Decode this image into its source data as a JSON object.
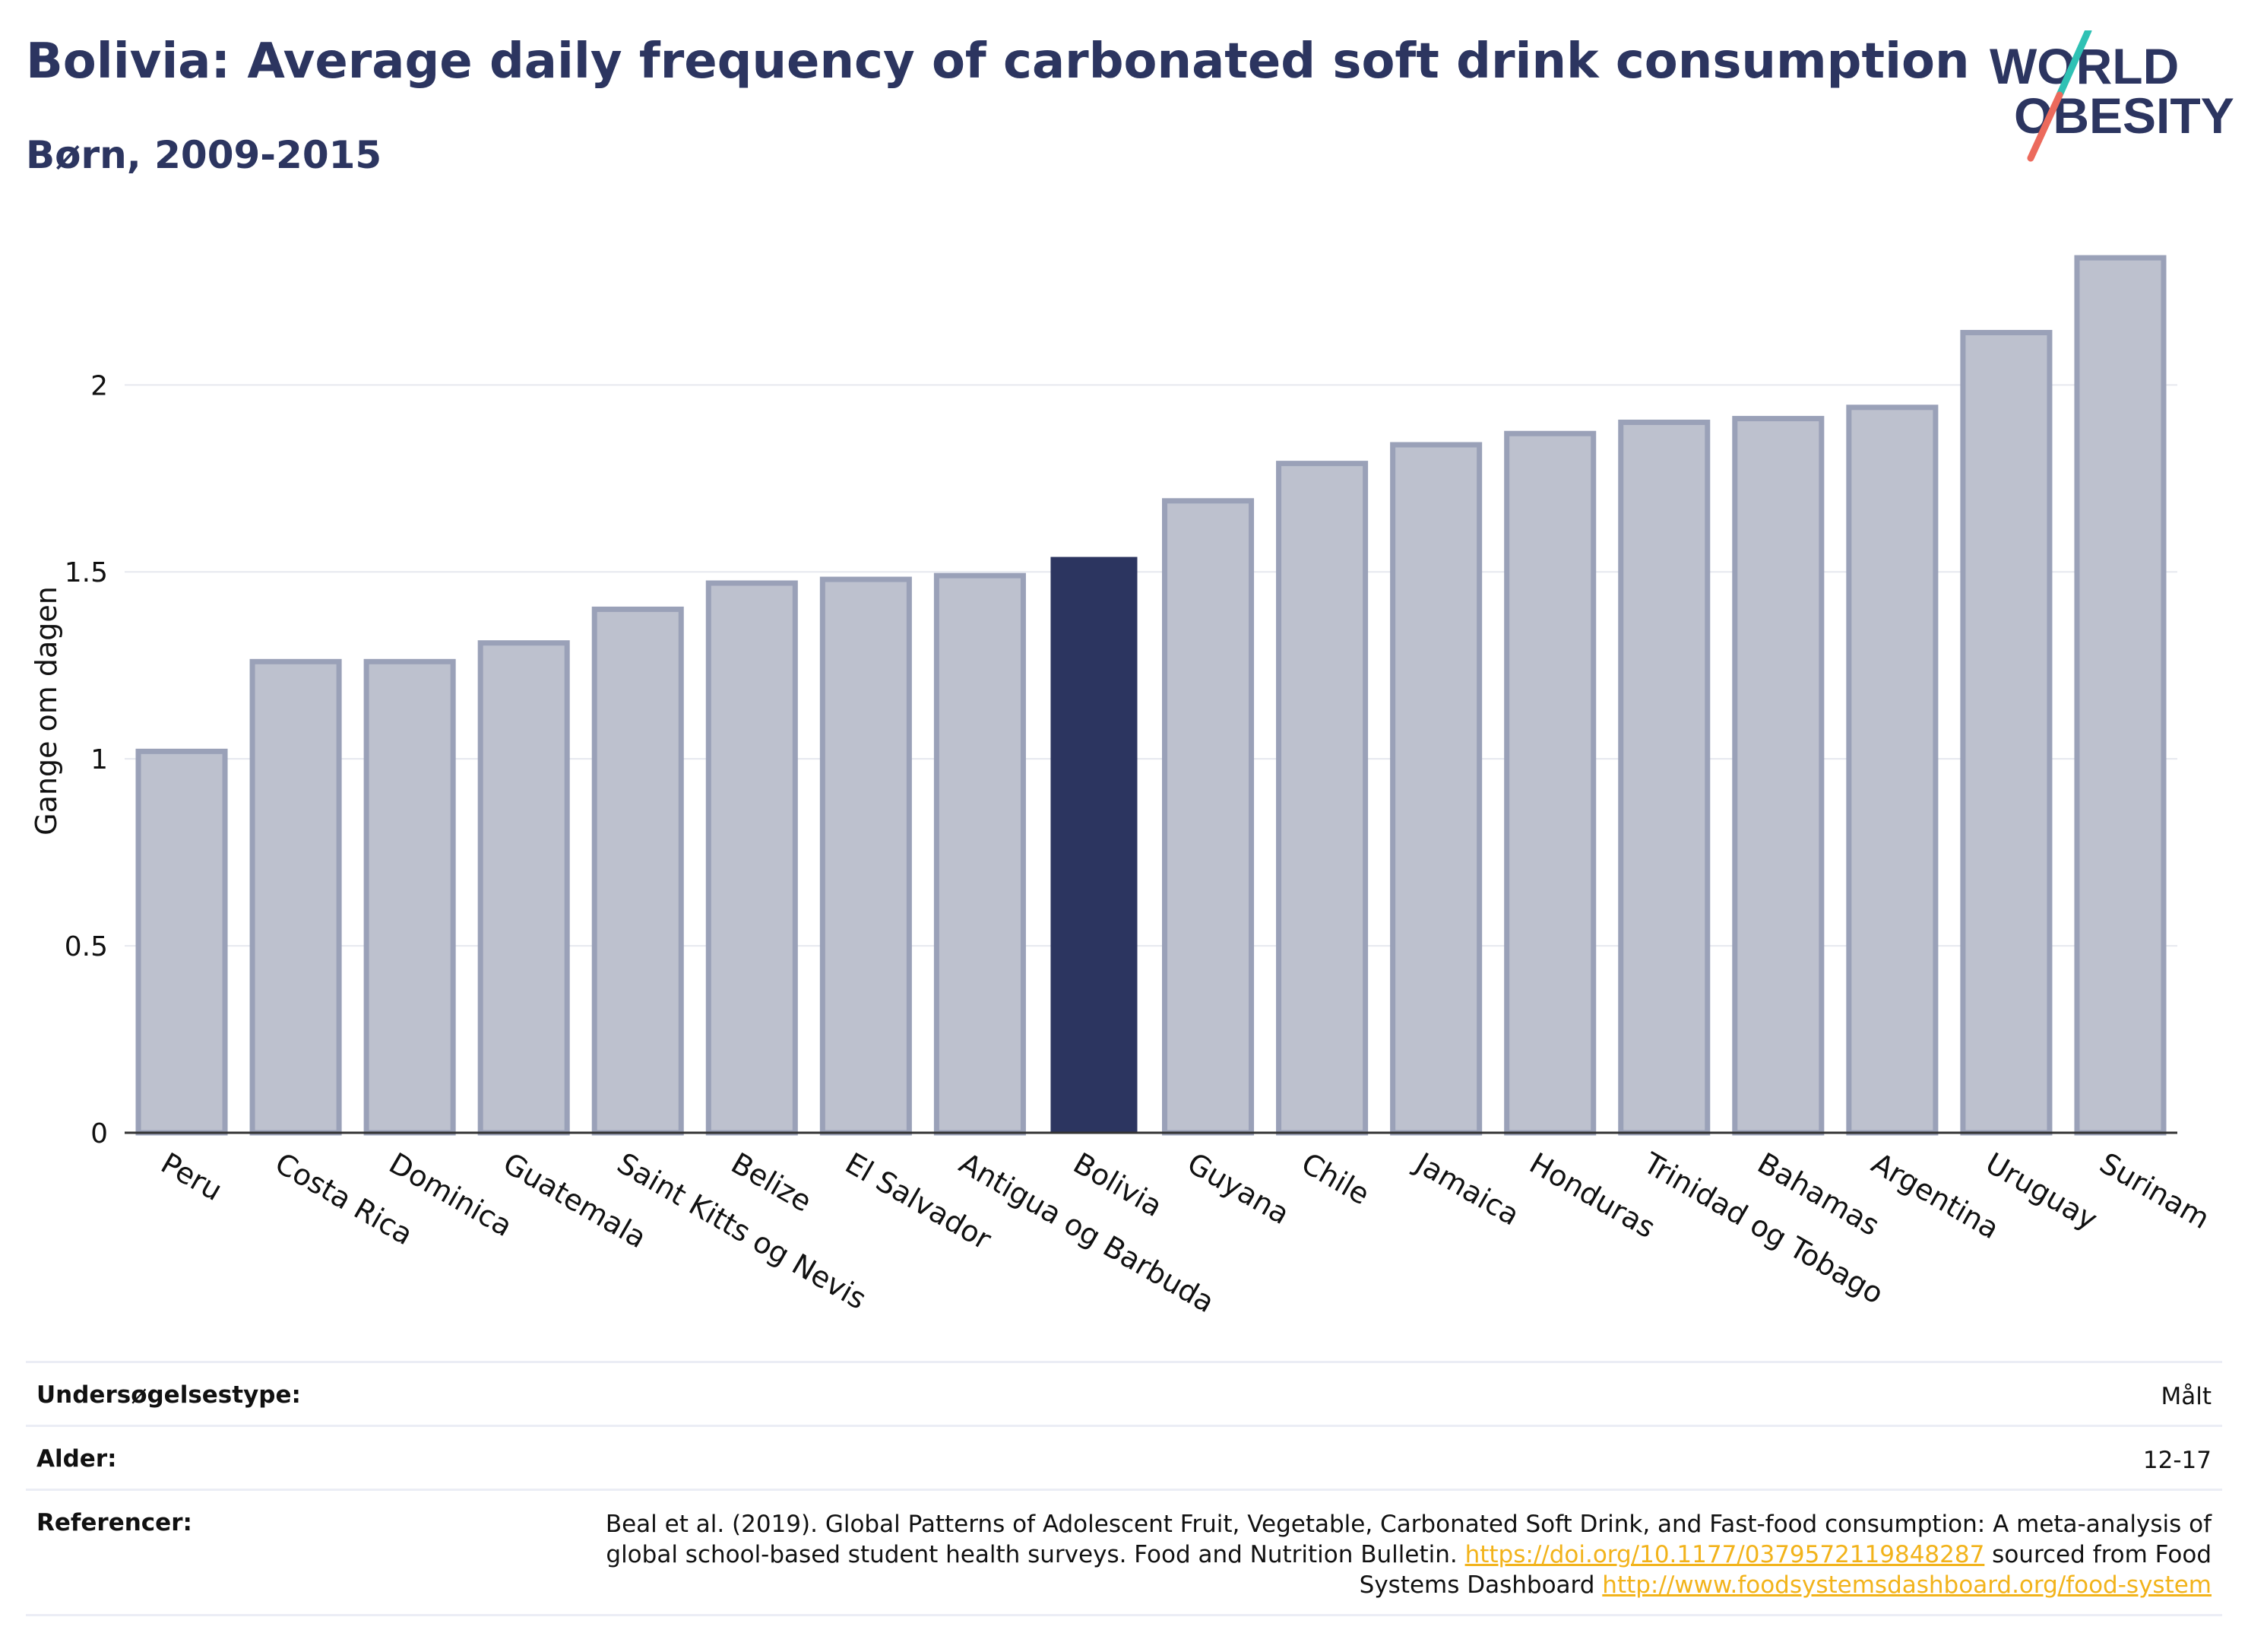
{
  "header": {
    "title": "Bolivia: Average daily frequency of carbonated soft drink consumption",
    "subtitle": "Børn, 2009-2015"
  },
  "logo": {
    "line1": "WORLD",
    "line2": "OBESITY"
  },
  "colors": {
    "bar": "#bdc1ce",
    "bar_outline": "#9aa1b8",
    "highlight": "#2c3560",
    "grid": "#e6e8ef",
    "text": "#2c3560"
  },
  "chart_data": {
    "type": "bar",
    "ylabel": "Gange om dagen",
    "ylim": [
      0,
      2.45
    ],
    "yticks": [
      0,
      0.5,
      1,
      1.5,
      2
    ],
    "ytick_labels": [
      "0",
      "0.5",
      "1",
      "1.5",
      "2"
    ],
    "grid": true,
    "highlight": "Bolivia",
    "categories": [
      "Peru",
      "Costa Rica",
      "Dominica",
      "Guatemala",
      "Saint Kitts og Nevis",
      "Belize",
      "El Salvador",
      "Antigua og Barbuda",
      "Bolivia",
      "Guyana",
      "Chile",
      "Jamaica",
      "Honduras",
      "Trinidad og Tobago",
      "Bahamas",
      "Argentina",
      "Uruguay",
      "Surinam"
    ],
    "values": [
      1.02,
      1.26,
      1.26,
      1.31,
      1.4,
      1.47,
      1.48,
      1.49,
      1.54,
      1.69,
      1.79,
      1.84,
      1.87,
      1.9,
      1.91,
      1.94,
      2.14,
      2.34
    ]
  },
  "meta": {
    "survey_label": "Undersøgelsestype:",
    "survey_value": "Målt",
    "age_label": "Alder:",
    "age_value": "12-17",
    "ref_label": "Referencer:",
    "ref_text1": "Beal et al. (2019). Global Patterns of Adolescent Fruit, Vegetable, Carbonated Soft Drink, and Fast-food consumption: A meta-analysis of global school-based student health surveys. Food and Nutrition Bulletin. ",
    "ref_link1": "https://doi.org/10.1177/0379572119848287",
    "ref_text2": " sourced from Food Systems Dashboard ",
    "ref_link2": "http://www.foodsystemsdashboard.org/food-system"
  }
}
